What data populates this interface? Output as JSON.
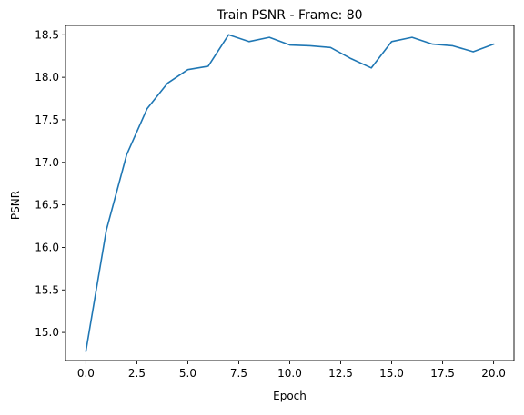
{
  "chart_data": {
    "type": "line",
    "title": "Train PSNR - Frame: 80",
    "xlabel": "Epoch",
    "ylabel": "PSNR",
    "xlim": [
      -1,
      21
    ],
    "ylim": [
      14.67,
      18.61
    ],
    "xticks": [
      0,
      2.5,
      5,
      7.5,
      10,
      12.5,
      15,
      17.5,
      20
    ],
    "xtick_labels": [
      "0.0",
      "2.5",
      "5.0",
      "7.5",
      "10.0",
      "12.5",
      "15.0",
      "17.5",
      "20.0"
    ],
    "yticks": [
      15.0,
      15.5,
      16.0,
      16.5,
      17.0,
      17.5,
      18.0,
      18.5
    ],
    "ytick_labels": [
      "15.0",
      "15.5",
      "16.0",
      "16.5",
      "17.0",
      "17.5",
      "18.0",
      "18.5"
    ],
    "grid": false,
    "legend": "none",
    "series": [
      {
        "color": "#1f77b4",
        "x": [
          0,
          1,
          2,
          3,
          4,
          5,
          6,
          7,
          8,
          9,
          10,
          11,
          12,
          13,
          14,
          15,
          16,
          17,
          18,
          19,
          20
        ],
        "y": [
          14.78,
          16.2,
          17.09,
          17.63,
          17.93,
          18.09,
          18.13,
          18.5,
          18.42,
          18.47,
          18.38,
          18.37,
          18.35,
          18.22,
          18.11,
          18.42,
          18.47,
          18.39,
          18.37,
          18.3,
          18.39
        ]
      }
    ]
  }
}
